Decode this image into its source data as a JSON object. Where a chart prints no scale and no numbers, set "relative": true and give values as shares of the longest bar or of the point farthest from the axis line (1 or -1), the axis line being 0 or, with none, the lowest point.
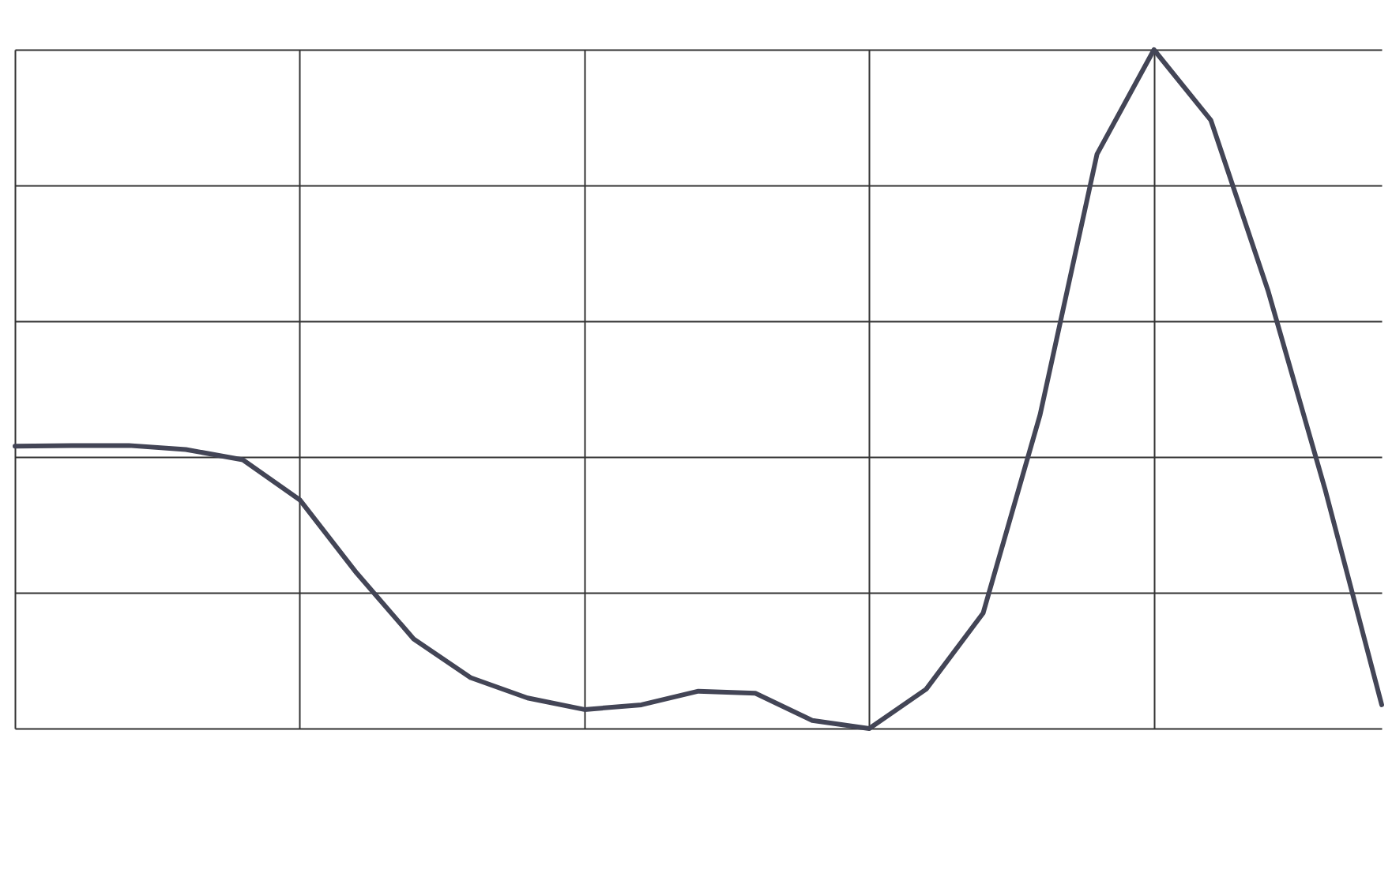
{
  "chart_data": {
    "type": "line",
    "relative": true,
    "grid": true,
    "categories": [
      null,
      null,
      null,
      null,
      null,
      null,
      null,
      null,
      null,
      null,
      null,
      null,
      null,
      null,
      null,
      null,
      null,
      null,
      null,
      null,
      null,
      null,
      null,
      null,
      null
    ],
    "series": [
      {
        "color": "#434556",
        "values": [
          0.416,
          0.417,
          0.417,
          0.411,
          0.396,
          0.337,
          0.229,
          0.132,
          0.075,
          0.045,
          0.028,
          0.035,
          0.055,
          0.052,
          0.012,
          0,
          0.058,
          0.17,
          0.462,
          0.846,
          1,
          0.896,
          0.646,
          0.354,
          0.035
        ]
      }
    ]
  }
}
